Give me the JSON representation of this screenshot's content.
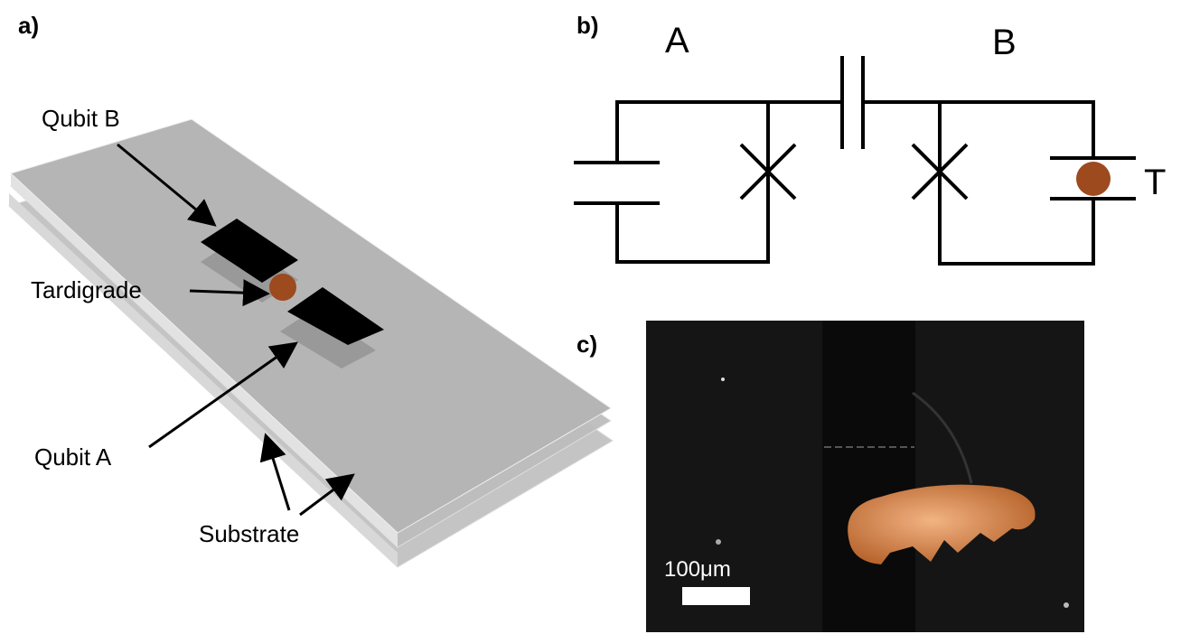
{
  "panels": {
    "a": {
      "label": "a)",
      "annotations": [
        "Qubit B",
        "Tardigrade",
        "Qubit A",
        "Substrate"
      ]
    },
    "b": {
      "label": "b)",
      "annotations": [
        "A",
        "B",
        "T"
      ]
    },
    "c": {
      "label": "c)",
      "scale_bar": "100μm"
    }
  }
}
